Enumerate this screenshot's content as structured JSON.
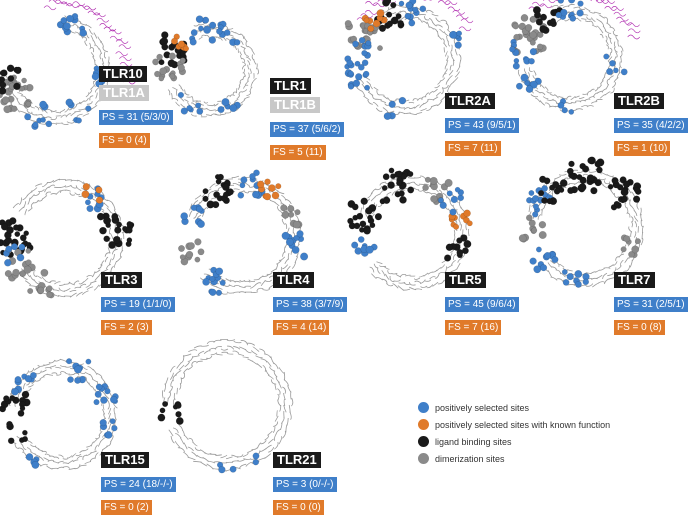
{
  "colors": {
    "positive": "#3f7fc9",
    "functional": "#e07a2a",
    "ligand": "#1a1a1a",
    "dimer": "#8a8a8a",
    "ribbon": "#c9c9c9",
    "magenta": "#b233b2"
  },
  "panels": [
    {
      "id": "tlr10",
      "name": "TLR10",
      "partner": "TLR1A",
      "ps": "PS = 31 (5/3/0)",
      "fs": "FS = 0 (4)"
    },
    {
      "id": "tlr1",
      "name": "TLR1",
      "partner": "TLR1B",
      "ps": "PS = 37 (5/6/2)",
      "fs": "FS = 5 (11)"
    },
    {
      "id": "tlr2a",
      "name": "TLR2A",
      "partner": "",
      "ps": "PS = 43 (9/5/1)",
      "fs": "FS = 7 (11)"
    },
    {
      "id": "tlr2b",
      "name": "TLR2B",
      "partner": "",
      "ps": "PS = 35 (4/2/2)",
      "fs": "FS = 1 (10)"
    },
    {
      "id": "tlr3",
      "name": "TLR3",
      "partner": "",
      "ps": "PS = 19 (1/1/0)",
      "fs": "FS = 2 (3)"
    },
    {
      "id": "tlr4",
      "name": "TLR4",
      "partner": "",
      "ps": "PS = 38 (3/7/9)",
      "fs": "FS = 4 (14)"
    },
    {
      "id": "tlr5",
      "name": "TLR5",
      "partner": "",
      "ps": "PS = 45 (9/6/4)",
      "fs": "FS = 7 (16)"
    },
    {
      "id": "tlr7",
      "name": "TLR7",
      "partner": "",
      "ps": "PS = 31 (2/5/1)",
      "fs": "FS = 0 (8)"
    },
    {
      "id": "tlr15",
      "name": "TLR15",
      "partner": "",
      "ps": "PS = 24 (18/-/-)",
      "fs": "FS = 0 (2)"
    },
    {
      "id": "tlr21",
      "name": "TLR21",
      "partner": "",
      "ps": "PS = 3 (0/-/-)",
      "fs": "FS = 0 (0)"
    }
  ],
  "legend": [
    {
      "label": "positively selected sites",
      "color": "#3f7fc9"
    },
    {
      "label": "positively selected sites with known function",
      "color": "#e07a2a"
    },
    {
      "label": "ligand binding sites",
      "color": "#1a1a1a"
    },
    {
      "label": "dimerization sites",
      "color": "#8a8a8a"
    }
  ]
}
